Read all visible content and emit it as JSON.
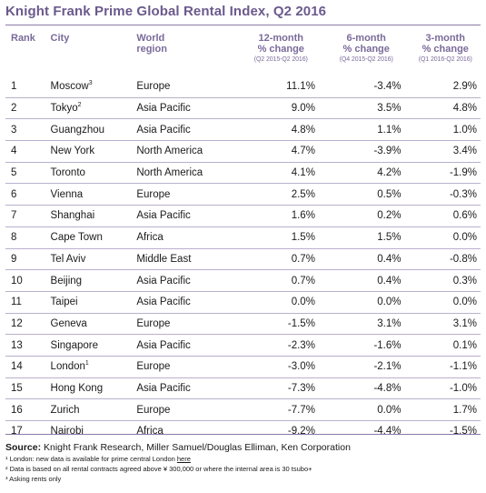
{
  "title": "Knight Frank Prime Global Rental Index, Q2 2016",
  "headers": {
    "rank": "Rank",
    "city": "City",
    "region_line1": "World",
    "region_line2": "region",
    "c12_line1": "12-month",
    "c12_line2": "% change",
    "c12_sub": "(Q2 2015-Q2 2016)",
    "c6_line1": "6-month",
    "c6_line2": "% change",
    "c6_sub": "(Q4 2015-Q2 2016)",
    "c3_line1": "3-month",
    "c3_line2": "% change",
    "c3_sub": "(Q1 2016-Q2 2016)"
  },
  "rows": [
    {
      "rank": "1",
      "city": "Moscow",
      "sup": "3",
      "region": "Europe",
      "c12": "11.1%",
      "c6": "-3.4%",
      "c3": "2.9%"
    },
    {
      "rank": "2",
      "city": "Tokyo",
      "sup": "2",
      "region": "Asia Pacific",
      "c12": "9.0%",
      "c6": "3.5%",
      "c3": "4.8%"
    },
    {
      "rank": "3",
      "city": "Guangzhou",
      "sup": "",
      "region": "Asia Pacific",
      "c12": "4.8%",
      "c6": "1.1%",
      "c3": "1.0%"
    },
    {
      "rank": "4",
      "city": "New York",
      "sup": "",
      "region": "North America",
      "c12": "4.7%",
      "c6": "-3.9%",
      "c3": "3.4%"
    },
    {
      "rank": "5",
      "city": "Toronto",
      "sup": "",
      "region": "North America",
      "c12": "4.1%",
      "c6": "4.2%",
      "c3": "-1.9%"
    },
    {
      "rank": "6",
      "city": "Vienna",
      "sup": "",
      "region": "Europe",
      "c12": "2.5%",
      "c6": "0.5%",
      "c3": "-0.3%"
    },
    {
      "rank": "7",
      "city": "Shanghai",
      "sup": "",
      "region": "Asia Pacific",
      "c12": "1.6%",
      "c6": "0.2%",
      "c3": "0.6%"
    },
    {
      "rank": "8",
      "city": "Cape Town",
      "sup": "",
      "region": "Africa",
      "c12": "1.5%",
      "c6": "1.5%",
      "c3": "0.0%"
    },
    {
      "rank": "9",
      "city": "Tel Aviv",
      "sup": "",
      "region": "Middle East",
      "c12": "0.7%",
      "c6": "0.4%",
      "c3": "-0.8%"
    },
    {
      "rank": "10",
      "city": "Beijing",
      "sup": "",
      "region": "Asia Pacific",
      "c12": "0.7%",
      "c6": "0.4%",
      "c3": "0.3%"
    },
    {
      "rank": "11",
      "city": "Taipei",
      "sup": "",
      "region": "Asia Pacific",
      "c12": "0.0%",
      "c6": "0.0%",
      "c3": "0.0%"
    },
    {
      "rank": "12",
      "city": "Geneva",
      "sup": "",
      "region": "Europe",
      "c12": "-1.5%",
      "c6": "3.1%",
      "c3": "3.1%"
    },
    {
      "rank": "13",
      "city": "Singapore",
      "sup": "",
      "region": "Asia Pacific",
      "c12": "-2.3%",
      "c6": "-1.6%",
      "c3": "0.1%"
    },
    {
      "rank": "14",
      "city": "London",
      "sup": "1",
      "region": "Europe",
      "c12": "-3.0%",
      "c6": "-2.1%",
      "c3": "-1.1%"
    },
    {
      "rank": "15",
      "city": "Hong Kong",
      "sup": "",
      "region": "Asia Pacific",
      "c12": "-7.3%",
      "c6": "-4.8%",
      "c3": "-1.0%"
    },
    {
      "rank": "16",
      "city": "Zurich",
      "sup": "",
      "region": "Europe",
      "c12": "-7.7%",
      "c6": "0.0%",
      "c3": "1.7%"
    },
    {
      "rank": "17",
      "city": "Nairobi",
      "sup": "",
      "region": "Africa",
      "c12": "-9.2%",
      "c6": "-4.4%",
      "c3": "-1.5%"
    }
  ],
  "footer": {
    "source_label": "Source:",
    "source_text": " Knight Frank Research, Miller Samuel/Douglas Elliman, Ken Corporation",
    "note1_prefix": "¹ London: new data is available for prime central London ",
    "note1_link": "here",
    "note2": "² Data is based on all rental contracts agreed above ¥ 300,000 or where the internal area is 30 tsubo+",
    "note3": "³ Asking rents only"
  },
  "colors": {
    "accent": "#6b5a8c",
    "rule": "#b9b0cc"
  }
}
